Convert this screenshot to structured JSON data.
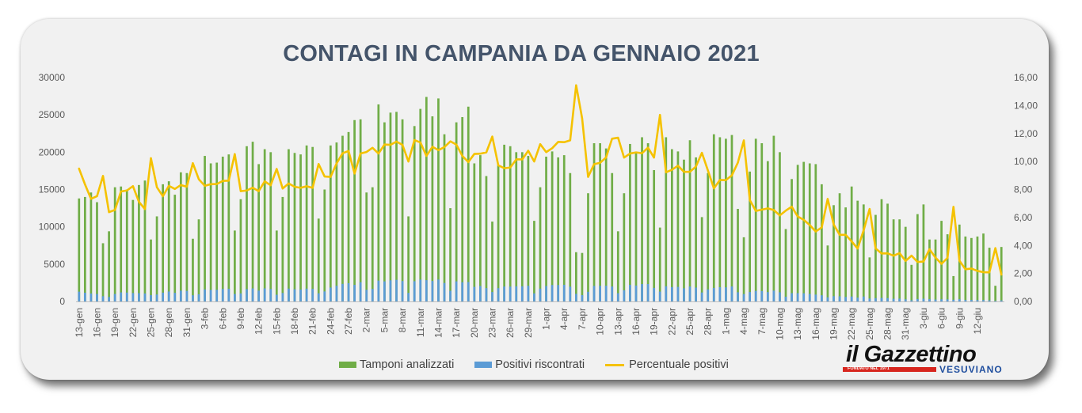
{
  "chart_data": {
    "type": "bar+line",
    "title": "CONTAGI IN CAMPANIA DA GENNAIO 2021",
    "grid": false,
    "legend_position": "bottom",
    "y_left": {
      "min": 0,
      "max": 30000,
      "ticks": [
        "0",
        "5000",
        "10000",
        "15000",
        "20000",
        "25000",
        "30000"
      ]
    },
    "y_right": {
      "min": 0,
      "max": 16,
      "ticks": [
        "0,00",
        "2,00",
        "4,00",
        "6,00",
        "8,00",
        "10,00",
        "12,00",
        "14,00",
        "16,00"
      ]
    },
    "x_tick_labels": [
      "13-gen",
      "16-gen",
      "19-gen",
      "22-gen",
      "25-gen",
      "28-gen",
      "31-gen",
      "3-feb",
      "6-feb",
      "9-feb",
      "12-feb",
      "15-feb",
      "18-feb",
      "21-feb",
      "24-feb",
      "27-feb",
      "2-mar",
      "5-mar",
      "8-mar",
      "11-mar",
      "14-mar",
      "17-mar",
      "20-mar",
      "23-mar",
      "26-mar",
      "29-mar",
      "1-apr",
      "4-apr",
      "7-apr",
      "10-apr",
      "13-apr",
      "16-apr",
      "19-apr",
      "22-apr",
      "25-apr",
      "28-apr",
      "1-mag",
      "4-mag",
      "7-mag",
      "10-mag",
      "13-mag",
      "16-mag",
      "19-mag",
      "22-mag",
      "25-mag",
      "28-mag",
      "31-mag",
      "3-giu",
      "6-giu",
      "9-giu",
      "12-giu"
    ],
    "series": [
      {
        "name": "Tamponi analizzati",
        "kind": "bar",
        "color": "#70ad47",
        "values": [
          13800,
          14000,
          14600,
          13300,
          7800,
          9400,
          15300,
          15400,
          15000,
          13600,
          15600,
          16200,
          8300,
          11400,
          15700,
          16100,
          14300,
          17300,
          17200,
          8400,
          11000,
          19500,
          18500,
          18600,
          19400,
          19700,
          9500,
          13700,
          20800,
          21400,
          18400,
          20400,
          20000,
          9500,
          14000,
          20400,
          19900,
          19700,
          20900,
          20700,
          11100,
          15000,
          20900,
          21300,
          22200,
          22700,
          24300,
          24400,
          14600,
          15300,
          26400,
          24000,
          25300,
          25400,
          24400,
          11400,
          23500,
          25800,
          27400,
          24800,
          27200,
          22400,
          12500,
          24000,
          24700,
          26100,
          18500,
          19600,
          16800,
          10700,
          18300,
          21000,
          20800,
          20000,
          20000,
          19500,
          10800,
          15300,
          19400,
          20100,
          19300,
          19600,
          17200,
          6600,
          6500,
          14500,
          21200,
          21200,
          20500,
          17200,
          9400,
          14500,
          21100,
          20000,
          22000,
          21200,
          17600,
          9900,
          22000,
          20400,
          20100,
          19000,
          21600,
          19300,
          11300,
          17200,
          22400,
          22000,
          21800,
          22300,
          12400,
          8600,
          17400,
          21800,
          21200,
          18800,
          22200,
          20000,
          9700,
          16400,
          18300,
          18700,
          18500,
          18400,
          15700,
          7500,
          12900,
          14500,
          12600,
          15400,
          13500,
          13000,
          5900,
          11600,
          13700,
          13100,
          11000,
          11000,
          10000,
          4900,
          11700,
          13000,
          8300,
          8300,
          10800,
          9000,
          3400,
          10300,
          8700,
          8500,
          8700,
          9100,
          7200,
          2100,
          7300
        ]
      },
      {
        "name": "Positivi riscontrati",
        "kind": "bar",
        "color": "#5b9bd5",
        "values": [
          1310,
          1170,
          1070,
          1000,
          700,
          600,
          1000,
          1210,
          1190,
          1120,
          1110,
          1070,
          850,
          930,
          1180,
          1330,
          1150,
          1440,
          1410,
          830,
          960,
          1610,
          1550,
          1560,
          1670,
          1700,
          1000,
          1080,
          1650,
          1740,
          1450,
          1750,
          1660,
          900,
          1130,
          1720,
          1630,
          1600,
          1720,
          1680,
          1090,
          1340,
          1860,
          2100,
          2350,
          2440,
          2220,
          2580,
          1560,
          1680,
          2790,
          2690,
          2830,
          2900,
          2730,
          1140,
          2710,
          2930,
          2850,
          2740,
          2940,
          2470,
          1430,
          2690,
          2570,
          2600,
          1950,
          2070,
          1790,
          1260,
          1780,
          2000,
          1990,
          2030,
          2030,
          2100,
          1080,
          1720,
          2070,
          2200,
          2200,
          2230,
          1980,
          1020,
          850,
          1290,
          2080,
          2100,
          2110,
          2000,
          1100,
          1490,
          2230,
          2130,
          2330,
          2330,
          1810,
          1320,
          2030,
          1920,
          1950,
          1760,
          2000,
          1860,
          1200,
          1610,
          1810,
          1910,
          1890,
          2010,
          1230,
          990,
          1260,
          1410,
          1390,
          1250,
          1450,
          1230,
          630,
          1110,
          1110,
          1090,
          1010,
          920,
          830,
          550,
          710,
          690,
          600,
          660,
          510,
          660,
          390,
          440,
          470,
          450,
          360,
          380,
          290,
          160,
          330,
          370,
          310,
          260,
          290,
          280,
          230,
          300,
          200,
          200,
          190,
          190,
          150,
          80,
          140
        ]
      },
      {
        "name": "Percentuale positivi",
        "kind": "line",
        "axis": "right",
        "color": "#f5c200",
        "values": [
          9.49,
          8.36,
          7.33,
          7.52,
          8.97,
          6.38,
          6.54,
          7.86,
          7.93,
          8.24,
          7.12,
          6.6,
          10.24,
          8.16,
          7.52,
          8.26,
          8.04,
          8.32,
          8.2,
          9.88,
          8.73,
          8.26,
          8.38,
          8.39,
          8.61,
          8.63,
          10.53,
          7.88,
          7.93,
          8.13,
          7.88,
          8.58,
          8.3,
          9.47,
          8.07,
          8.43,
          8.19,
          8.12,
          8.23,
          8.12,
          9.82,
          8.93,
          8.9,
          9.86,
          10.59,
          10.75,
          9.14,
          10.57,
          10.68,
          10.98,
          10.57,
          11.21,
          11.19,
          11.42,
          11.19,
          10.0,
          11.53,
          11.36,
          10.4,
          11.05,
          10.81,
          11.03,
          11.44,
          11.21,
          10.4,
          9.96,
          10.54,
          10.56,
          10.65,
          11.78,
          9.73,
          9.52,
          9.57,
          10.15,
          10.15,
          10.77,
          10.0,
          11.24,
          10.67,
          10.95,
          11.4,
          11.38,
          11.51,
          15.45,
          13.08,
          8.9,
          9.81,
          9.91,
          10.29,
          11.63,
          11.7,
          10.28,
          10.57,
          10.65,
          10.59,
          10.99,
          10.28,
          13.33,
          9.23,
          9.41,
          9.7,
          9.26,
          9.26,
          9.64,
          10.62,
          9.36,
          8.08,
          8.68,
          8.67,
          9.01,
          9.92,
          11.51,
          7.24,
          6.47,
          6.56,
          6.65,
          6.53,
          6.15,
          6.49,
          6.77,
          6.07,
          5.83,
          5.46,
          5.0,
          5.29,
          7.33,
          5.5,
          4.76,
          4.76,
          4.29,
          3.78,
          5.08,
          6.61,
          3.79,
          3.43,
          3.44,
          3.27,
          3.45,
          2.9,
          3.27,
          2.82,
          2.85,
          3.73,
          3.13,
          2.69,
          3.11,
          6.76,
          2.91,
          2.3,
          2.35,
          2.18,
          2.09,
          2.08,
          3.81,
          1.92
        ]
      }
    ]
  },
  "legend": {
    "tamponi": "Tamponi analizzati",
    "positivi": "Positivi riscontrati",
    "percentuale": "Percentuale positivi"
  },
  "logo": {
    "main": "il Gazzettino",
    "sub": "VESUVIANO",
    "founded": "FONDATO NEL 1971"
  }
}
